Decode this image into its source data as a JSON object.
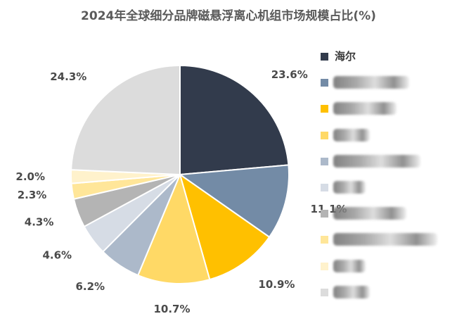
{
  "chart_data": {
    "type": "pie",
    "title": "2024年全球细分品牌磁悬浮离心机组市场规模占比(%)",
    "legend_position": "right",
    "slices": [
      {
        "label": "海尔",
        "value": 23.6,
        "value_label": "23.6%",
        "color": "#323B4C"
      },
      {
        "label": "",
        "value": 11.1,
        "value_label": "11.1%",
        "color": "#738BA6"
      },
      {
        "label": "",
        "value": 10.9,
        "value_label": "10.9%",
        "color": "#FFC000"
      },
      {
        "label": "",
        "value": 10.7,
        "value_label": "10.7%",
        "color": "#FFD966"
      },
      {
        "label": "",
        "value": 6.2,
        "value_label": "6.2%",
        "color": "#ACB9CA"
      },
      {
        "label": "",
        "value": 4.6,
        "value_label": "4.6%",
        "color": "#D6DCE5"
      },
      {
        "label": "",
        "value": 4.3,
        "value_label": "4.3%",
        "color": "#B4B4B4"
      },
      {
        "label": "",
        "value": 2.3,
        "value_label": "2.3%",
        "color": "#FFE699"
      },
      {
        "label": "",
        "value": 2.0,
        "value_label": "2.0%",
        "color": "#FFF2CC"
      },
      {
        "label": "",
        "value": 24.3,
        "value_label": "24.3%",
        "color": "#DCDCDC"
      }
    ]
  }
}
